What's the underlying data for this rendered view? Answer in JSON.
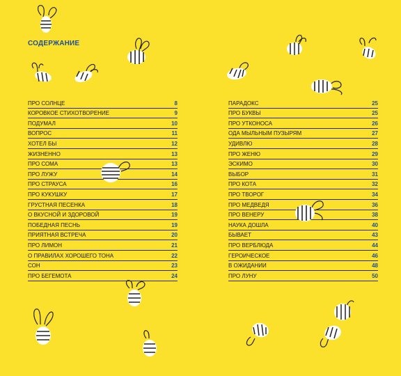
{
  "title": "СОДЕРЖАНИЕ",
  "colors": {
    "background": "#fbe12b",
    "accent": "#1e4f93",
    "text": "#1a1a1a"
  },
  "toc_left": [
    {
      "title": "ПРО СОЛНЦЕ",
      "page": "8"
    },
    {
      "title": "КОРОВКОЕ СТИХОТВОРЕНИЕ",
      "page": "9"
    },
    {
      "title": "ПОДУМАЛ",
      "page": "10"
    },
    {
      "title": "ВОПРОС",
      "page": "11"
    },
    {
      "title": "ХОТЕЛ БЫ",
      "page": "12"
    },
    {
      "title": "ЖИЗНЕННО",
      "page": "13"
    },
    {
      "title": "ПРО СОМА",
      "page": "13"
    },
    {
      "title": "ПРО ЛУЖУ",
      "page": "14"
    },
    {
      "title": "ПРО СТРАУСА",
      "page": "16"
    },
    {
      "title": "ПРО КУКУШКУ",
      "page": "17"
    },
    {
      "title": "ГРУСТНАЯ ПЕСЕНКА",
      "page": "18"
    },
    {
      "title": "О ВКУСНОЙ И ЗДОРОВОЙ",
      "page": "19"
    },
    {
      "title": "ПОБЕДНАЯ ПЕСНЬ",
      "page": "19"
    },
    {
      "title": "ПРИЯТНАЯ ВСТРЕЧА",
      "page": "20"
    },
    {
      "title": "ПРО ЛИМОН",
      "page": "21"
    },
    {
      "title": "О ПРАВИЛАХ ХОРОШЕГО ТОНА",
      "page": "22"
    },
    {
      "title": "СОН",
      "page": "23"
    },
    {
      "title": "ПРО БЕГЕМОТА",
      "page": "24"
    }
  ],
  "toc_right": [
    {
      "title": "ПАРАДОКС",
      "page": "25"
    },
    {
      "title": "ПРО БУКВЫ",
      "page": "25"
    },
    {
      "title": "ПРО УТКОНОСА",
      "page": "26"
    },
    {
      "title": "ОДА МЫЛЬНЫМ ПУЗЫРЯМ",
      "page": "27"
    },
    {
      "title": "УДИВЛЮ",
      "page": "28"
    },
    {
      "title": "ПРО ЖЕНЮ",
      "page": "29"
    },
    {
      "title": "ЭСКИМО",
      "page": "30"
    },
    {
      "title": "ВЫБОР",
      "page": "31"
    },
    {
      "title": "ПРО КОТА",
      "page": "32"
    },
    {
      "title": "ПРО ТВОРОГ",
      "page": "34"
    },
    {
      "title": "ПРО МЕДВЕДЯ",
      "page": "36"
    },
    {
      "title": "ПРО ВЕНЕРУ",
      "page": "38"
    },
    {
      "title": "НАУКА ДОШЛА",
      "page": "40"
    },
    {
      "title": "БЫВАЕТ",
      "page": "43"
    },
    {
      "title": "ПРО ВЕРБЛЮДА",
      "page": "44"
    },
    {
      "title": "ГЕРОИЧЕСКОЕ",
      "page": "46"
    },
    {
      "title": "В ОЖИДАНИИ",
      "page": "48"
    },
    {
      "title": "ПРО ЛУНУ",
      "page": "50"
    }
  ],
  "decorations": {
    "icon": "bee-icon"
  }
}
